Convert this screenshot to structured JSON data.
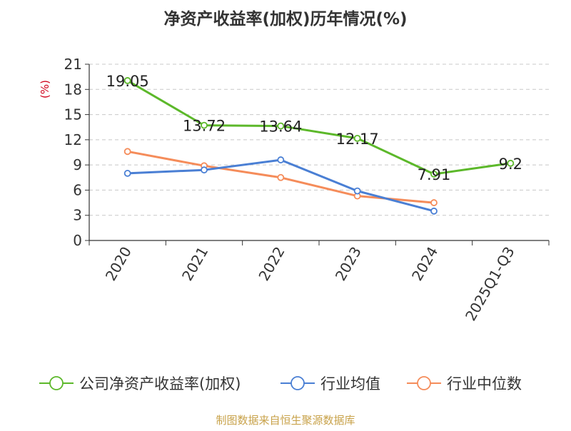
{
  "chart_data": {
    "type": "line",
    "title": "净资产收益率(加权)历年情况(%)",
    "ylabel": "(%)",
    "categories": [
      "2020",
      "2021",
      "2022",
      "2023",
      "2024",
      "2025Q1-Q3"
    ],
    "ylim": [
      0,
      21
    ],
    "yticks": [
      0,
      3,
      6,
      9,
      12,
      15,
      18,
      21
    ],
    "grid": true,
    "legend_position": "bottom",
    "series": [
      {
        "name": "公司净资产收益率(加权)",
        "color": "#5cb82a",
        "values": [
          19.05,
          13.72,
          13.64,
          12.17,
          7.91,
          9.2
        ],
        "labels": [
          "19.05",
          "13.72",
          "13.64",
          "12.17",
          "7.91",
          "9.2"
        ]
      },
      {
        "name": "行业均值",
        "color": "#4a7fd4",
        "values": [
          8.0,
          8.4,
          9.6,
          5.9,
          3.5,
          null
        ]
      },
      {
        "name": "行业中位数",
        "color": "#f58c5a",
        "values": [
          10.6,
          8.9,
          7.5,
          5.3,
          4.5,
          null
        ]
      }
    ]
  },
  "footer": {
    "source": "制图数据来自恒生聚源数据库"
  }
}
